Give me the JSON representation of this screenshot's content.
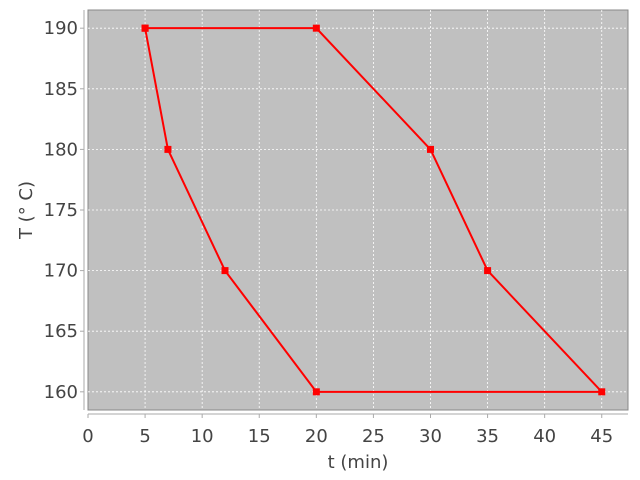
{
  "chart_data": {
    "type": "line",
    "title": "",
    "xlabel": "t (min)",
    "ylabel": "T (° C)",
    "xlim": [
      0,
      47.3
    ],
    "ylim": [
      158.5,
      191.5
    ],
    "xticks": [
      0,
      5,
      10,
      15,
      20,
      25,
      30,
      35,
      40,
      45
    ],
    "yticks": [
      160,
      165,
      170,
      175,
      180,
      185,
      190
    ],
    "grid": true,
    "background": "#c0c0c0",
    "series": [
      {
        "color": "#ff0000",
        "marker": "square",
        "x": [
          5,
          20,
          30,
          35,
          45,
          20,
          12,
          7,
          5
        ],
        "y": [
          190,
          190,
          180,
          170,
          160,
          160,
          170,
          180,
          190
        ]
      }
    ]
  }
}
